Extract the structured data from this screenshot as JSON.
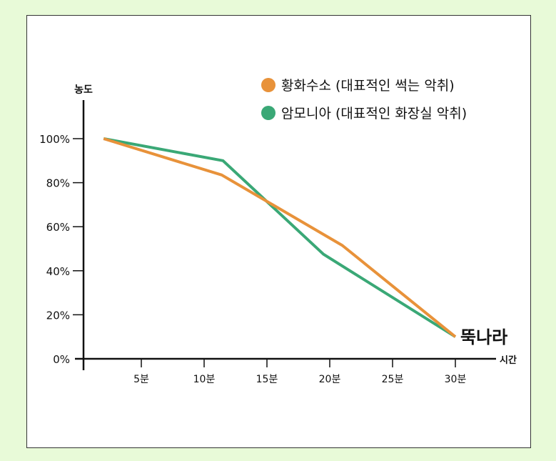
{
  "chart_data": {
    "type": "line",
    "ylabel": "농도",
    "xlabel": "시간",
    "y_ticks": [
      "0%",
      "20%",
      "40%",
      "60%",
      "80%",
      "100%"
    ],
    "y_tick_values": [
      0,
      20,
      40,
      60,
      80,
      100
    ],
    "x_ticks": [
      "5분",
      "10분",
      "15분",
      "20분",
      "25분",
      "30분"
    ],
    "x_tick_values": [
      5,
      10,
      15,
      20,
      25,
      30
    ],
    "xlim": [
      0,
      33
    ],
    "ylim": [
      0,
      115
    ],
    "legend_position": "top-right",
    "series": [
      {
        "name": "황화수소 (대표적인 썩는 악취)",
        "color": "#e8923a",
        "x": [
          2,
          11.4,
          21,
          30
        ],
        "y": [
          100,
          83.5,
          51.5,
          10
        ]
      },
      {
        "name": "암모니아 (대표적인 화장실 악취)",
        "color": "#3aa876",
        "x": [
          2,
          11.5,
          19.5,
          30
        ],
        "y": [
          100,
          90,
          47.5,
          10
        ]
      }
    ],
    "annotation": "뚝나라"
  }
}
